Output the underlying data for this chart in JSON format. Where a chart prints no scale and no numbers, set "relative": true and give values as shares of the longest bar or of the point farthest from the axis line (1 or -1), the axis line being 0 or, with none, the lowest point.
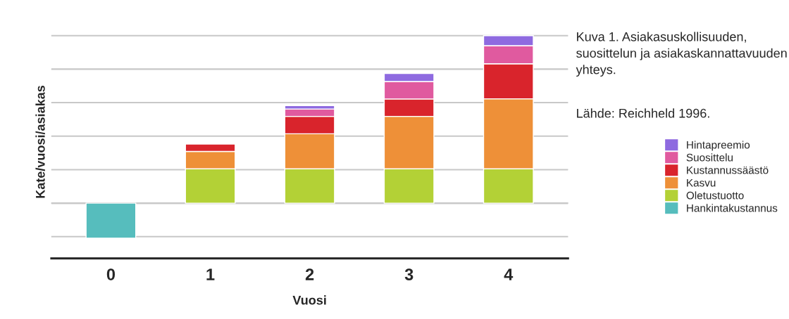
{
  "chart_data": {
    "type": "bar",
    "stacked": true,
    "relative": true,
    "title": "Kuva 1. Asiakasuskollisuuden, suosittelun ja asiakaskannattavuuden yhteys.",
    "annotations": [
      "Lähde: Reichheld 1996."
    ],
    "xlabel": "Vuosi",
    "ylabel": "Kate/vuosi/asiakas",
    "categories": [
      "0",
      "1",
      "2",
      "3",
      "4"
    ],
    "grid": "y",
    "legend": "right",
    "series": [
      {
        "name": "Hankintakustannus",
        "color": "#56bdbd",
        "values": [
          -0.209,
          null,
          null,
          null,
          null
        ]
      },
      {
        "name": "Oletustuotto",
        "color": "#b3d136",
        "values": [
          null,
          0.205,
          0.205,
          0.205,
          0.205
        ]
      },
      {
        "name": "Kasvu",
        "color": "#ee9038",
        "values": [
          null,
          0.104,
          0.209,
          0.313,
          0.418
        ]
      },
      {
        "name": "Kustannussäästö",
        "color": "#d9242c",
        "values": [
          null,
          0.044,
          0.104,
          0.104,
          0.209
        ]
      },
      {
        "name": "Suosittelu",
        "color": "#e05a9f",
        "values": [
          null,
          null,
          0.044,
          0.104,
          0.108
        ]
      },
      {
        "name": "Hintapreemio",
        "color": "#8e6ae0",
        "values": [
          null,
          null,
          0.02,
          0.048,
          0.06
        ]
      }
    ]
  }
}
